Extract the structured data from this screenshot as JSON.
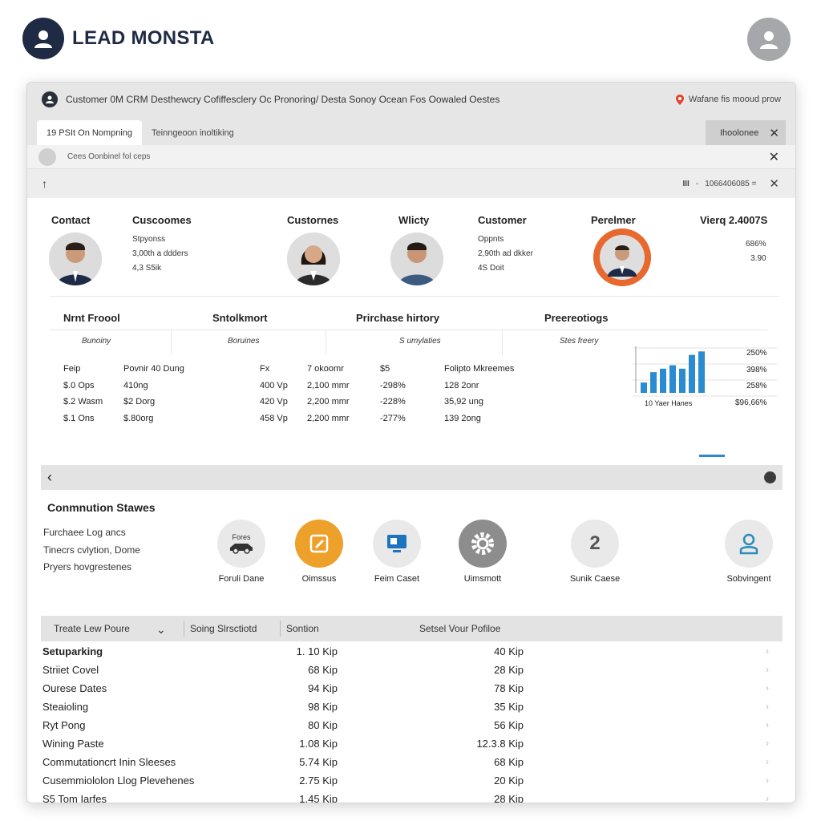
{
  "app": {
    "brand": "LEAD MONSTA"
  },
  "window": {
    "title": "Customer 0M CRM Desthewcry Cofiffesclery Oc  Pronoring/ Desta Sonoy Ocean Fos Oowaled Oestes",
    "location": "Wafane fis mooud prow",
    "tabs": [
      "19  PSIt On Nompning",
      "Teinngeoon inoltiking"
    ],
    "tab_right": "Ihoolonee",
    "notice": "Cees Oonbinel fol ceps",
    "toolbar_right": "1066406085 ="
  },
  "customers": {
    "headers": [
      "Contact",
      "Cuscoomes",
      "Custornes",
      "Wlicty",
      "Customer",
      "Perelmer",
      "Vierq 2.4007S"
    ],
    "c2_lines": [
      "Stpyonss",
      "3,00th a ddders",
      "4,3 S5ik"
    ],
    "c5_lines": [
      "Oppnts",
      "2,90th ad dkker",
      "4S Doit"
    ],
    "c7_lines": [
      "686%",
      "3.90"
    ]
  },
  "summary": {
    "headers": [
      "Nrnt Froool",
      "Sntolkmort",
      "Prirchase hirtory",
      "Preereotiogs"
    ],
    "subs": [
      "Bunoiny",
      "Boruines",
      "S umylaties",
      "Stes freery"
    ],
    "col1": [
      "Feip",
      "$.0 Ops",
      "$.2 Wasm",
      "$.1 Ons"
    ],
    "col2": [
      "Povnir  40 Dung",
      "410ng",
      "$2 Dorg",
      "$.80org"
    ],
    "col3": [
      "Fx",
      "400 Vp",
      "420 Vp",
      "458 Vp"
    ],
    "col4": [
      "7 okoomr",
      "2,100 mmr",
      "2,200 mmr",
      "2,200 mmr"
    ],
    "col5": [
      "$5",
      "-298%",
      "-228%",
      "-277%"
    ],
    "col6": [
      "Folipto Mkreemes",
      "128 2onr",
      "35,92 ung",
      "139 2ong"
    ],
    "chart_pcts": [
      "250%",
      "398%",
      "258%"
    ],
    "chart_caption": "10 Yaer Hanes",
    "chart_total": "$96,66%"
  },
  "chart_data": {
    "type": "bar",
    "title": "",
    "categories": [
      "1",
      "2",
      "3",
      "4",
      "5",
      "6",
      "7"
    ],
    "values": [
      3,
      6,
      7,
      8,
      7,
      11,
      12
    ],
    "ylim": [
      0,
      13
    ],
    "color": "#2b8bd1"
  },
  "comm": {
    "title": "Conmnution Stawes",
    "lines": [
      "Furchaee Log ancs",
      "Tinecrs cvlytion,  Dome",
      "Pryers hovgrestenes"
    ],
    "actions": [
      {
        "label": "Foruli Dane",
        "icon": "car-icon",
        "inner": "Fores"
      },
      {
        "label": "Oimssus",
        "icon": "edit-icon",
        "inner": ""
      },
      {
        "label": "Feim Caset",
        "icon": "monitor-icon",
        "inner": ""
      },
      {
        "label": "Uimsmott",
        "icon": "gear-icon",
        "inner": ""
      },
      {
        "label": "Sunik Caese",
        "icon": "number-icon",
        "inner": "2"
      },
      {
        "label": "Sobvingent",
        "icon": "person-icon",
        "inner": ""
      }
    ]
  },
  "table": {
    "headers": [
      "Treate Lew Poure",
      "Soing Slrsctiotd",
      "Sontion",
      "Setsel Vour Pofiloe"
    ],
    "rows": [
      {
        "name": "Setuparking",
        "a": "1. 10 Kip",
        "b": "40 Kip"
      },
      {
        "name": "Striiet Covel",
        "a": "68 Kip",
        "b": "28 Kip"
      },
      {
        "name": "Ourese Dates",
        "a": "94 Kip",
        "b": "78 Kip"
      },
      {
        "name": "Steaioling",
        "a": "98 Kip",
        "b": "35 Kip"
      },
      {
        "name": "Ryt Pong",
        "a": "80 Kip",
        "b": "56 Kip"
      },
      {
        "name": "Wining Paste",
        "a": "1.08 Kip",
        "b": "12.3.8 Kip"
      },
      {
        "name": "Commutationcrt Inin Sleeses",
        "a": "5.74 Kip",
        "b": "68 Kip"
      },
      {
        "name": "Cusemmiololon Llog Plevehenes",
        "a": "2.75 Kip",
        "b": "20 Kip"
      },
      {
        "name": "S5 Tom Iarfes",
        "a": "1.45 Kip",
        "b": "28 Kip"
      }
    ]
  }
}
